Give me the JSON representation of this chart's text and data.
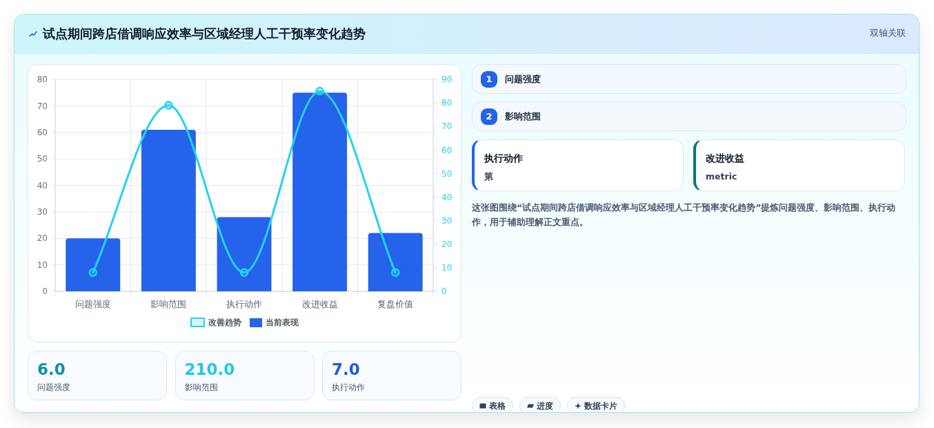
{
  "chart_data": [
    {
      "type": "bar",
      "title": "试点期间跨店借调响应效率与区域经理人工干预率变化趋势",
      "annotations": [
        "双轴关联"
      ],
      "categories": [
        "问题强度",
        "影响范围",
        "执行动作",
        "改进收益",
        "复盘价值"
      ],
      "series": [
        {
          "name": "改善趋势",
          "type": "line",
          "axis": "y2",
          "color": "#22d3ee",
          "values": [
            8,
            79,
            8,
            85,
            8
          ]
        },
        {
          "name": "当前表现",
          "type": "bar",
          "color": "#2563eb",
          "values": [
            20,
            61,
            28,
            75,
            22
          ]
        }
      ],
      "ylim": [
        0,
        80
      ],
      "yticks": [
        0,
        10,
        20,
        30,
        40,
        50,
        60,
        70,
        80
      ],
      "y2lim": [
        0,
        90
      ],
      "y2ticks": [
        0,
        10,
        20,
        30,
        40,
        50,
        60,
        70,
        80,
        90
      ],
      "grid": true,
      "legend": "bottom",
      "marker": "circle"
    },
    {
      "type": "other",
      "annotations": [
        "6.0",
        "问题强度",
        "210.0",
        "影响范围",
        "7.0",
        "执行动作"
      ]
    },
    {
      "type": "other",
      "annotations": [
        "1",
        "问题强度",
        "2",
        "影响范围",
        "执行动作",
        "第",
        "改进收益",
        "metric",
        "这张图围绕“试点期间跨店借调响应效率与区域经理人工干预率变化趋势”提炼问题强度、影响范围、执行动作，用于辅助理解正文重点。",
        "表格",
        "进度",
        "数据卡片"
      ]
    }
  ]
}
